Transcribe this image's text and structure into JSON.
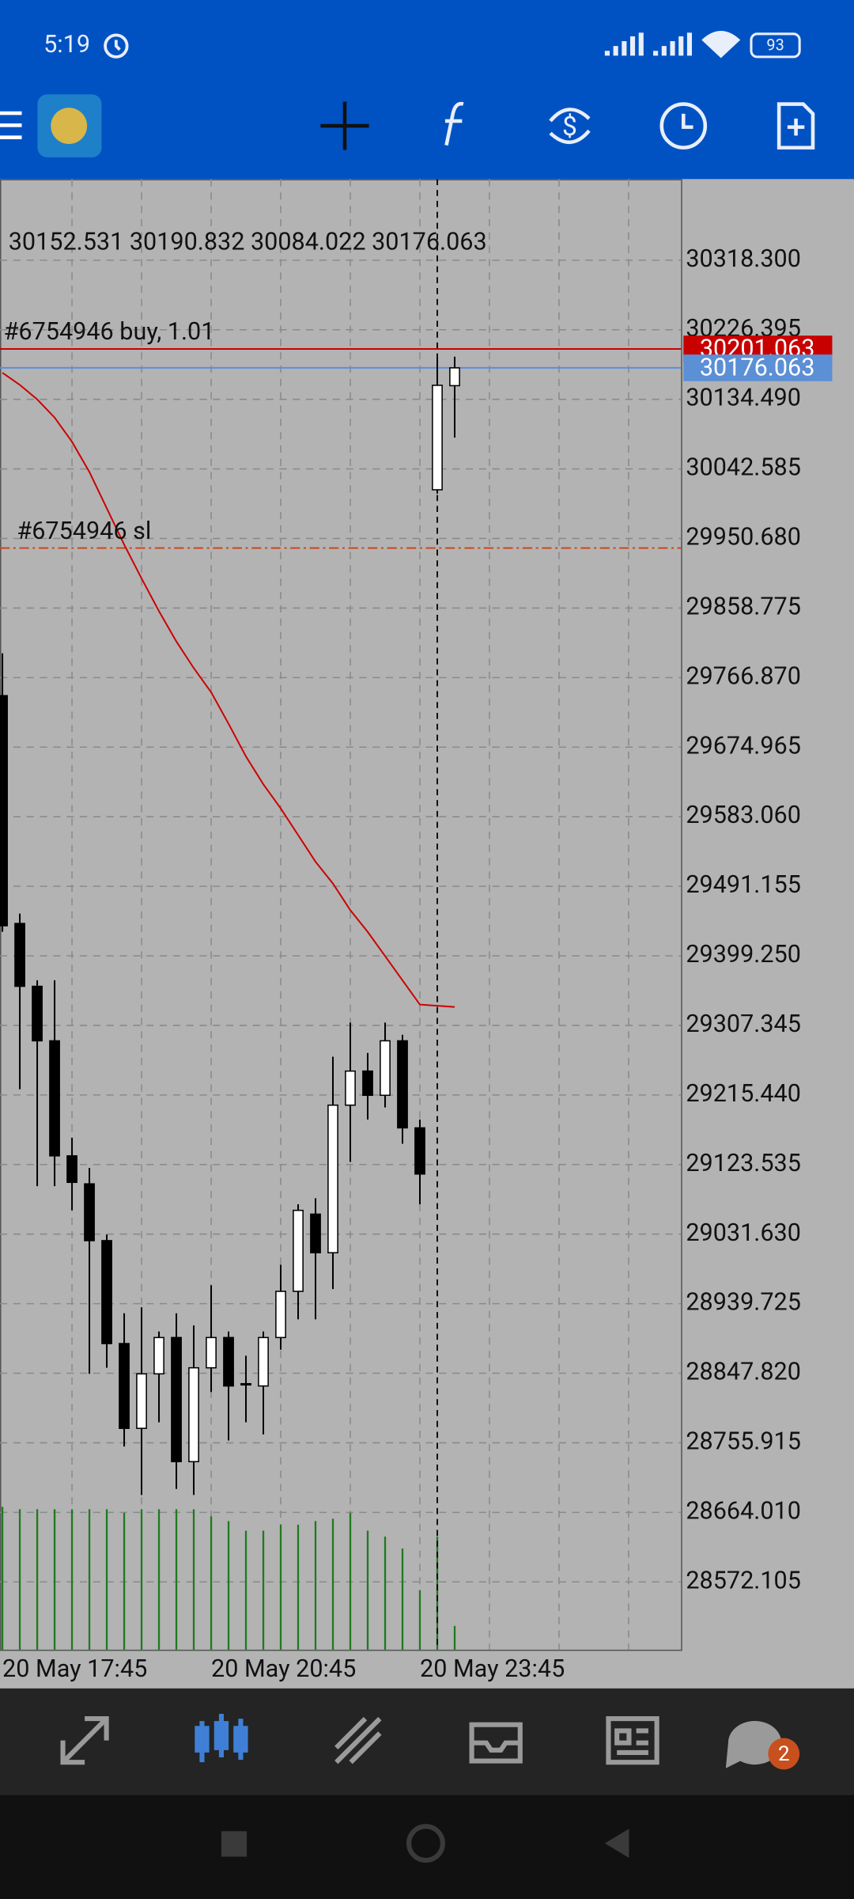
{
  "status_bar": {
    "time": "5:19",
    "battery": "93"
  },
  "chart_data": {
    "type": "candlestick",
    "info": "30152.531 30190.832 30084.022 30176.063",
    "categories": [
      "20 May 17:45",
      null,
      null,
      null,
      null,
      null,
      null,
      null,
      null,
      null,
      null,
      null,
      "20 May 20:45",
      null,
      null,
      null,
      null,
      null,
      null,
      null,
      null,
      null,
      null,
      null,
      "20 May 23:45",
      null,
      null
    ],
    "open": [
      29743,
      29442,
      29359,
      29287,
      29135,
      29098,
      29023,
      28887,
      28775,
      28847,
      28895,
      28731,
      28855,
      28895,
      28834,
      28831,
      28895,
      28956,
      29058,
      29007,
      29202,
      29247,
      29215,
      29287,
      29172,
      30015,
      30152.531
    ],
    "high": [
      29799,
      29455,
      29367,
      29367,
      29159,
      29119,
      29031,
      28927,
      28935,
      28903,
      28927,
      28911,
      28964,
      28903,
      28871,
      28903,
      28991,
      29071,
      29079,
      29266,
      29311,
      29271,
      29311,
      29295,
      29183,
      30190,
      30190.832
    ],
    "low": [
      29431,
      29223,
      29095,
      29095,
      29063,
      28847,
      28855,
      28751,
      28687,
      28783,
      28695,
      28687,
      28823,
      28759,
      28783,
      28767,
      28879,
      28919,
      28919,
      28959,
      29127,
      29183,
      29199,
      29151,
      29071,
      30010,
      30084.022
    ],
    "close": [
      29439,
      29359,
      29287,
      29135,
      29100,
      29023,
      28887,
      28775,
      28847,
      28895,
      28731,
      28855,
      28895,
      28831,
      28834,
      28895,
      28956,
      29063,
      29007,
      29202,
      29247,
      29215,
      29287,
      29172,
      29111,
      30153,
      30176.063
    ],
    "up_color": "#ffffff",
    "down_color": "#000000",
    "ma": {
      "color": "#cc0000",
      "values": [
        30169.6,
        30153.6,
        30134.4,
        30110.4,
        30078.4,
        30038.5,
        29990.5,
        29942.5,
        29897.8,
        29854.6,
        29814.6,
        29779.4,
        29747.5,
        29705.9,
        29662.7,
        29625.9,
        29594,
        29558.8,
        29523.6,
        29494.8,
        29459.6,
        29430.9,
        29398.9,
        29366.9,
        29334.9,
        29333.3,
        29331.7
      ]
    },
    "volume": {
      "color": "#1f7a1f",
      "vlim": [
        0,
        122
      ],
      "values": [
        120,
        118,
        118,
        118,
        118,
        118,
        118,
        115,
        118,
        118,
        118,
        118,
        112,
        108,
        100,
        100,
        105,
        105,
        108,
        110,
        115,
        100,
        95,
        85,
        50,
        95,
        20
      ]
    },
    "orders": [
      {
        "label": "#6754946 buy, 1.01",
        "price": 30201.063,
        "color": "#c80000"
      },
      {
        "label": "#6754946 sl",
        "price": 29938,
        "color": "#c84a1e"
      }
    ],
    "bid_color": "#5b8fd6",
    "ylim": [
      28482.6,
      30425.4
    ],
    "yticks": [
      {
        "value": 30318.3,
        "label": "30318.300"
      },
      {
        "value": 30226.395,
        "label": "30226.395"
      },
      {
        "value": 30134.49,
        "label": "30134.490"
      },
      {
        "value": 30042.585,
        "label": "30042.585"
      },
      {
        "value": 29950.68,
        "label": "29950.680"
      },
      {
        "value": 29858.775,
        "label": "29858.775"
      },
      {
        "value": 29766.87,
        "label": "29766.870"
      },
      {
        "value": 29674.965,
        "label": "29674.965"
      },
      {
        "value": 29583.06,
        "label": "29583.060"
      },
      {
        "value": 29491.155,
        "label": "29491.155"
      },
      {
        "value": 29399.25,
        "label": "29399.250"
      },
      {
        "value": 29307.345,
        "label": "29307.345"
      },
      {
        "value": 29215.44,
        "label": "29215.440"
      },
      {
        "value": 29123.535,
        "label": "29123.535"
      },
      {
        "value": 29031.63,
        "label": "29031.630"
      },
      {
        "value": 28939.725,
        "label": "28939.725"
      },
      {
        "value": 28847.82,
        "label": "28847.820"
      },
      {
        "value": 28755.915,
        "label": "28755.915"
      },
      {
        "value": 28664.01,
        "label": "28664.010"
      },
      {
        "value": 28572.105,
        "label": "28572.105"
      }
    ],
    "grid": true
  },
  "bottom_nav": {
    "badge": "2"
  }
}
